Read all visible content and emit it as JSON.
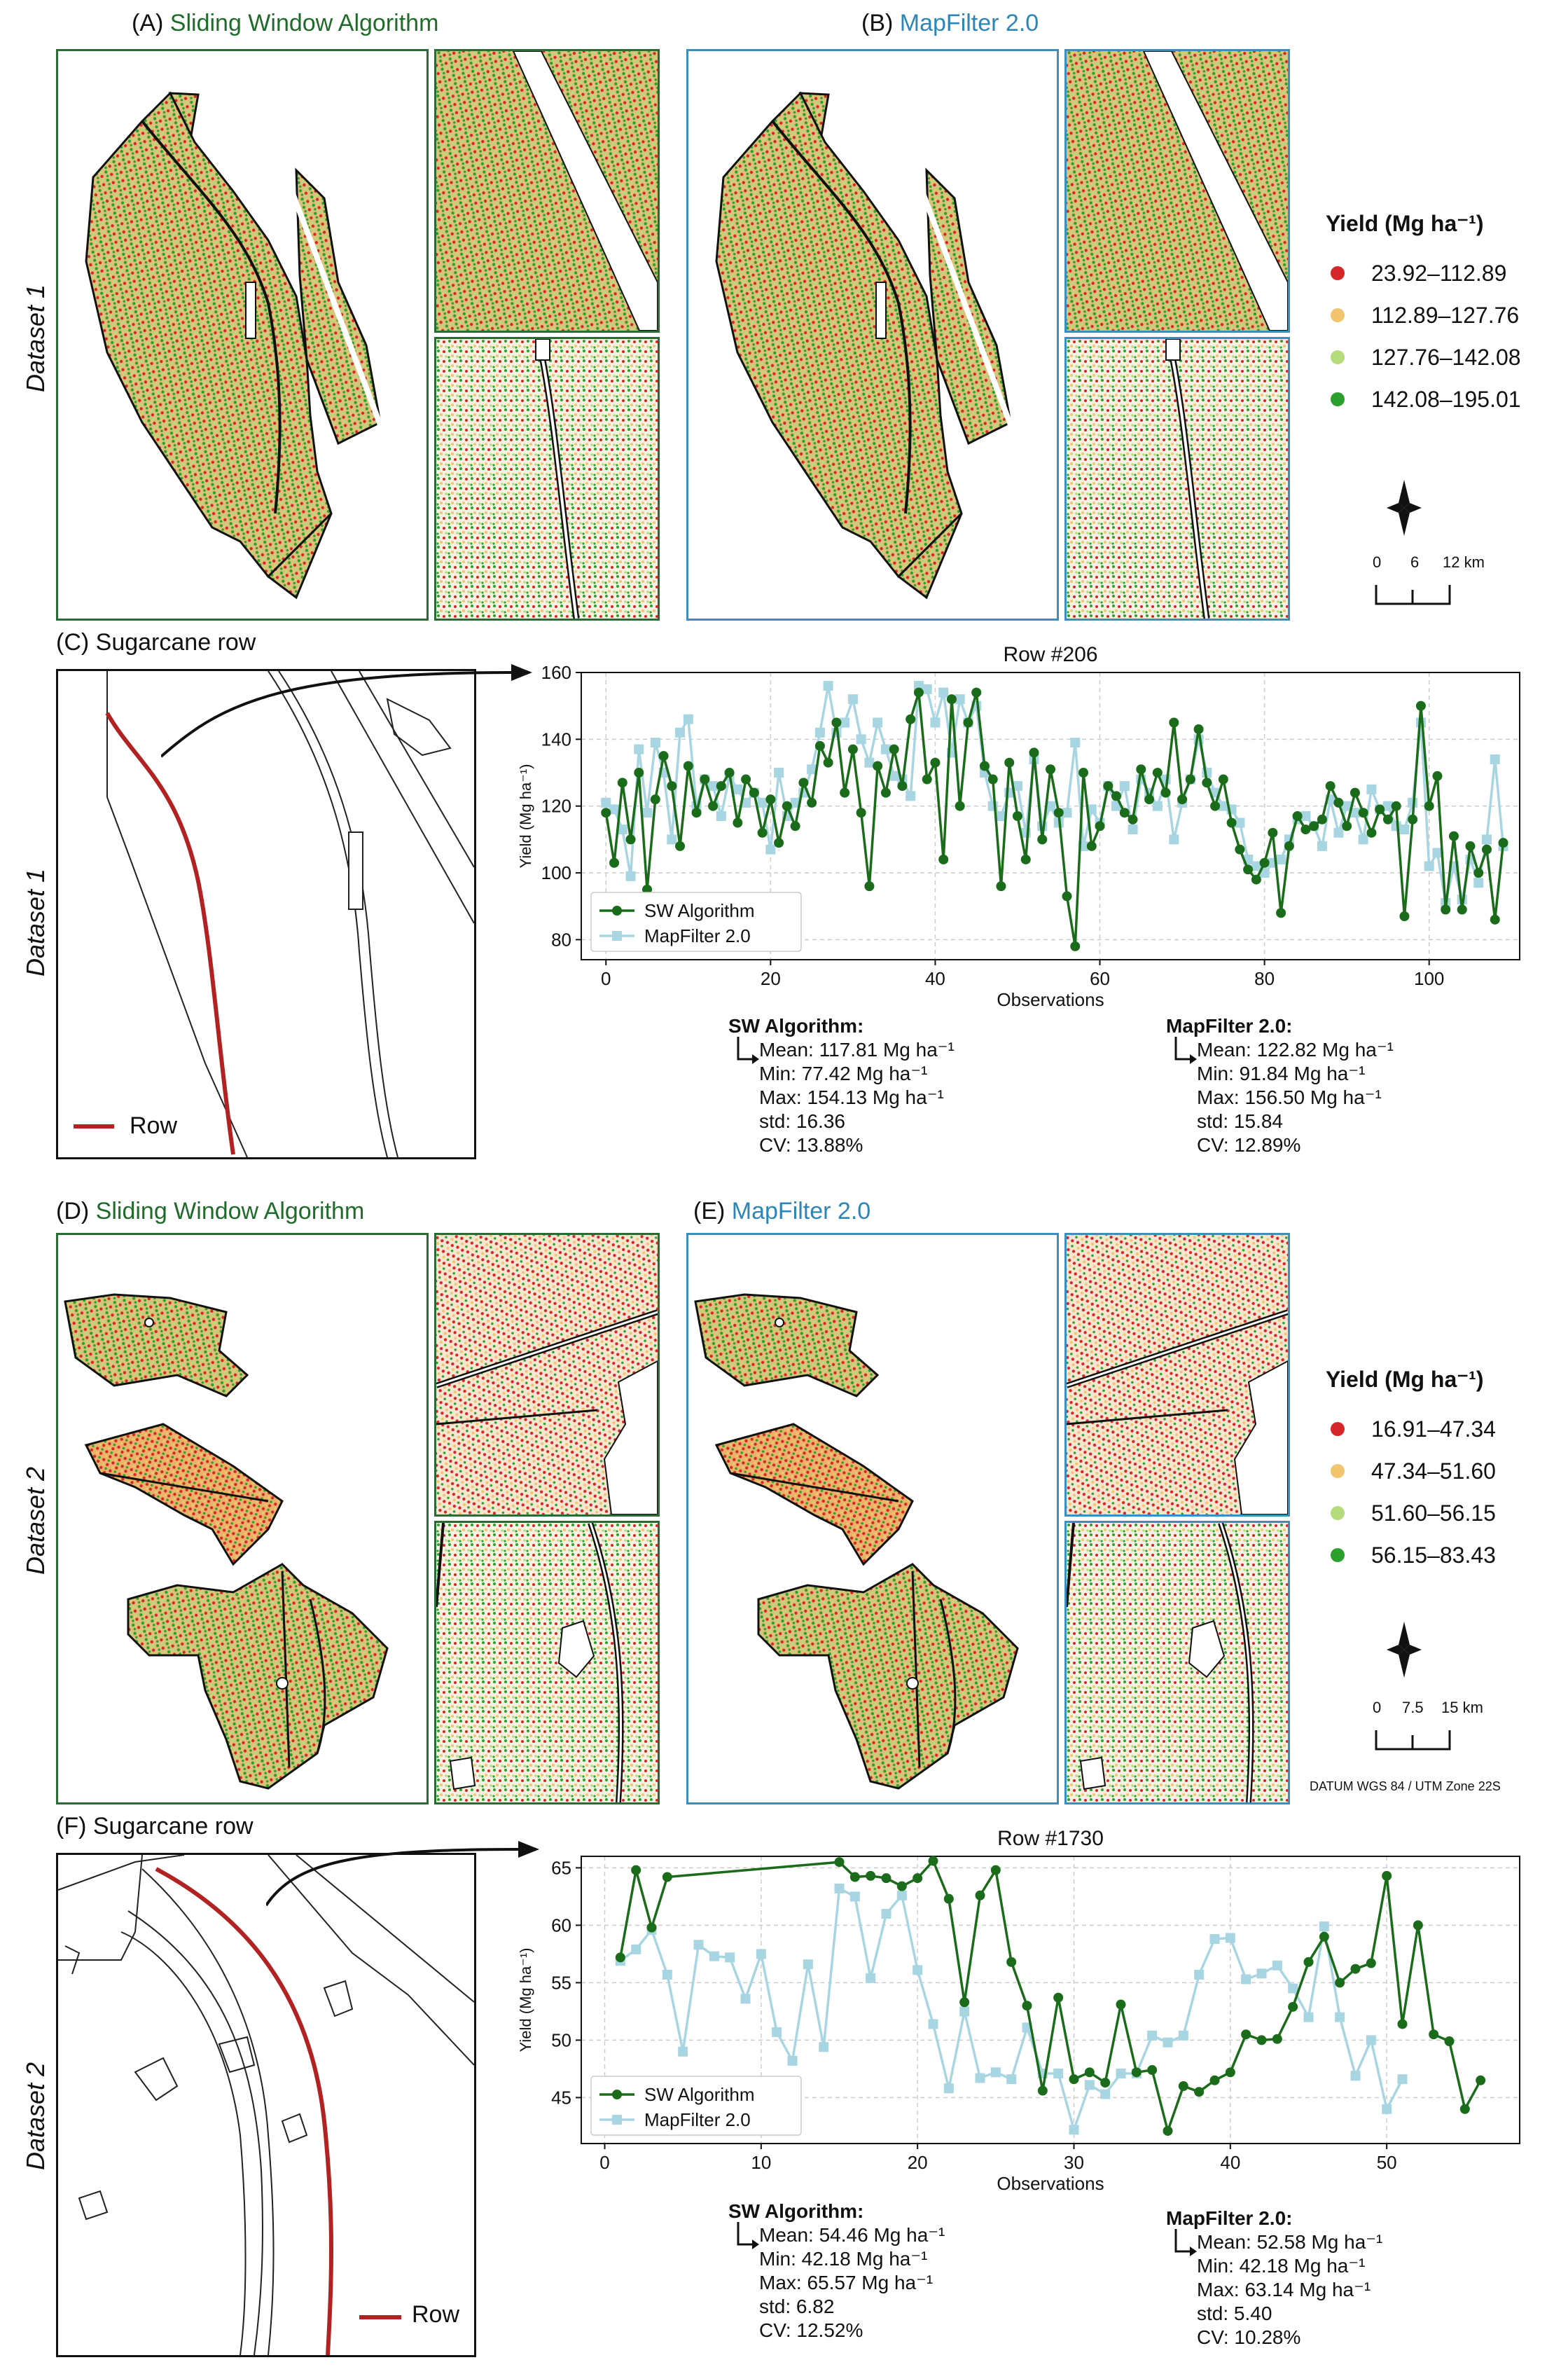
{
  "panels": {
    "A": {
      "title": "(A) Sliding Window Algorithm",
      "prefix": "(A) ",
      "name": "Sliding Window Algorithm",
      "color": "#1f6b2a"
    },
    "B": {
      "title": "(B) MapFilter 2.0",
      "prefix": "(B) ",
      "name": "MapFilter 2.0",
      "color": "#2e86b5"
    },
    "C": {
      "title": "(C) Sugarcane row"
    },
    "D": {
      "prefix": "(D) ",
      "name": "Sliding Window Algorithm",
      "color": "#1f6b2a"
    },
    "E": {
      "prefix": "(E) ",
      "name": "MapFilter 2.0",
      "color": "#2e86b5"
    },
    "F": {
      "title": "(F) Sugarcane row"
    }
  },
  "side_labels": {
    "dataset1": "Dataset 1",
    "dataset2": "Dataset 2"
  },
  "row_legend_label": "Row",
  "legend1": {
    "title": "Yield (Mg ha⁻¹)",
    "items": [
      "23.92–112.89",
      "112.89–127.76",
      "127.76–142.08",
      "142.08–195.01"
    ],
    "colors": [
      "#d62728",
      "#f2c46d",
      "#b5dc7a",
      "#2ca02c"
    ],
    "scale": [
      "0",
      "6",
      "12 km"
    ]
  },
  "legend2": {
    "title": "Yield (Mg ha⁻¹)",
    "items": [
      "16.91–47.34",
      "47.34–51.60",
      "51.60–56.15",
      "56.15–83.43"
    ],
    "colors": [
      "#d62728",
      "#f2c46d",
      "#b5dc7a",
      "#2ca02c"
    ],
    "scale": [
      "0",
      "7.5",
      "15 km"
    ],
    "datum": "DATUM WGS 84 / UTM Zone 22S"
  },
  "stats1": {
    "sw": {
      "title": "SW Algorithm:",
      "mean": "Mean: 117.81 Mg ha⁻¹",
      "min": "Min: 77.42 Mg ha⁻¹",
      "max": "Max: 154.13 Mg ha⁻¹",
      "std": "std: 16.36",
      "cv": "CV: 13.88%"
    },
    "mf": {
      "title": "MapFilter 2.0:",
      "mean": "Mean: 122.82 Mg ha⁻¹",
      "min": "Min: 91.84 Mg ha⁻¹",
      "max": "Max: 156.50 Mg ha⁻¹",
      "std": "std: 15.84",
      "cv": "CV: 12.89%"
    }
  },
  "stats2": {
    "sw": {
      "title": "SW Algorithm:",
      "mean": "Mean: 54.46 Mg ha⁻¹",
      "min": "Min: 42.18 Mg ha⁻¹",
      "max": "Max: 65.57 Mg ha⁻¹",
      "std": "std: 6.82",
      "cv": "CV: 12.52%"
    },
    "mf": {
      "title": "MapFilter 2.0:",
      "mean": "Mean: 52.58 Mg ha⁻¹",
      "min": "Min: 42.18 Mg ha⁻¹",
      "max": "Max: 63.14 Mg ha⁻¹",
      "std": "std: 5.40",
      "cv": "CV: 10.28%"
    }
  },
  "chart_data": [
    {
      "type": "line",
      "title": "Row #206",
      "xlabel": "Observations",
      "ylabel": "Yield (Mg ha⁻¹)",
      "xlim": [
        -3,
        111
      ],
      "ylim": [
        74,
        160
      ],
      "xticks": [
        0,
        20,
        40,
        60,
        80,
        100
      ],
      "yticks": [
        80,
        100,
        120,
        140,
        160
      ],
      "grid": true,
      "legend_position": "lower-left",
      "series": [
        {
          "name": "SW Algorithm",
          "color": "#1a6b1a",
          "marker": "circle",
          "x": [
            0,
            1,
            2,
            3,
            4,
            5,
            6,
            7,
            8,
            9,
            10,
            11,
            12,
            13,
            14,
            15,
            16,
            17,
            18,
            19,
            20,
            21,
            22,
            23,
            24,
            25,
            26,
            27,
            28,
            29,
            30,
            31,
            32,
            33,
            34,
            35,
            36,
            37,
            38,
            39,
            40,
            41,
            42,
            43,
            44,
            45,
            46,
            47,
            48,
            49,
            50,
            51,
            52,
            53,
            54,
            55,
            56,
            57,
            58,
            59,
            60,
            61,
            62,
            63,
            64,
            65,
            66,
            67,
            68,
            69,
            70,
            71,
            72,
            73,
            74,
            75,
            76,
            77,
            78,
            79,
            80,
            81,
            82,
            83,
            84,
            85,
            86,
            87,
            88,
            89,
            90,
            91,
            92,
            93,
            94,
            95,
            96,
            97,
            98,
            99,
            100,
            101,
            102,
            103,
            104,
            105,
            106,
            107,
            108,
            109
          ],
          "values": [
            118,
            103,
            127,
            110,
            130,
            95,
            122,
            135,
            126,
            108,
            132,
            118,
            128,
            120,
            126,
            130,
            115,
            128,
            124,
            112,
            122,
            109,
            120,
            114,
            127,
            121,
            138,
            133,
            145,
            124,
            137,
            118,
            96,
            132,
            124,
            137,
            126,
            146,
            154,
            128,
            133,
            104,
            152,
            120,
            145,
            154,
            132,
            128,
            96,
            133,
            117,
            104,
            136,
            110,
            131,
            118,
            93,
            78,
            130,
            108,
            114,
            126,
            123,
            118,
            116,
            131,
            122,
            130,
            124,
            145,
            122,
            128,
            143,
            127,
            120,
            128,
            115,
            107,
            101,
            98,
            103,
            112,
            88,
            108,
            117,
            113,
            114,
            116,
            126,
            121,
            114,
            124,
            118,
            112,
            119,
            116,
            120,
            87,
            116,
            150,
            120,
            129,
            89,
            111,
            89,
            108,
            100,
            107,
            86,
            109
          ]
        },
        {
          "name": "MapFilter 2.0",
          "color": "#a8d5e2",
          "marker": "square",
          "x": [
            0,
            1,
            2,
            3,
            4,
            5,
            6,
            7,
            8,
            9,
            10,
            11,
            12,
            13,
            14,
            15,
            16,
            17,
            18,
            19,
            20,
            21,
            22,
            23,
            24,
            25,
            26,
            27,
            28,
            29,
            30,
            31,
            32,
            33,
            34,
            35,
            36,
            37,
            38,
            39,
            40,
            41,
            42,
            43,
            44,
            45,
            46,
            47,
            48,
            49,
            50,
            51,
            52,
            53,
            54,
            55,
            56,
            57,
            58,
            59,
            60,
            61,
            62,
            63,
            64,
            65,
            66,
            67,
            68,
            69,
            70,
            71,
            72,
            73,
            74,
            75,
            76,
            77,
            78,
            79,
            80,
            81,
            82,
            83,
            84,
            85,
            86,
            87,
            88,
            89,
            90,
            91,
            92,
            93,
            94,
            95,
            96,
            97,
            98,
            99,
            100,
            101,
            102,
            103,
            104,
            105,
            106,
            107,
            108,
            109
          ],
          "values": [
            121,
            119,
            113,
            99,
            137,
            118,
            139,
            130,
            110,
            142,
            146,
            120,
            128,
            126,
            117,
            129,
            125,
            121,
            124,
            121,
            107,
            130,
            117,
            121,
            124,
            131,
            142,
            156,
            142,
            145,
            152,
            140,
            133,
            145,
            137,
            129,
            128,
            123,
            156,
            155,
            145,
            154,
            136,
            152,
            145,
            150,
            130,
            120,
            117,
            124,
            126,
            112,
            134,
            114,
            120,
            115,
            118,
            139,
            108,
            119,
            115,
            126,
            120,
            126,
            113,
            128,
            124,
            120,
            128,
            110,
            121,
            128,
            140,
            130,
            124,
            120,
            119,
            115,
            104,
            102,
            100,
            103,
            104,
            110,
            116,
            117,
            114,
            108,
            122,
            112,
            120,
            118,
            110,
            125,
            119,
            120,
            114,
            113,
            121,
            145,
            102,
            106,
            91,
            102,
            92,
            104,
            97,
            110,
            134,
            108
          ]
        }
      ]
    },
    {
      "type": "line",
      "title": "Row #1730",
      "xlabel": "Observations",
      "ylabel": "Yield (Mg ha⁻¹)",
      "xlim": [
        -1.5,
        58.5
      ],
      "ylim": [
        41,
        66
      ],
      "xticks": [
        0,
        10,
        20,
        30,
        40,
        50
      ],
      "yticks": [
        45,
        50,
        55,
        60,
        65
      ],
      "grid": true,
      "legend_position": "lower-left",
      "series": [
        {
          "name": "SW Algorithm",
          "color": "#1a6b1a",
          "marker": "circle",
          "x": [
            1,
            2,
            3,
            4,
            15,
            16,
            17,
            18,
            19,
            20,
            21,
            22,
            23,
            24,
            25,
            26,
            27,
            28,
            29,
            30,
            31,
            32,
            33,
            34,
            35,
            36,
            37,
            38,
            39,
            40,
            41,
            42,
            43,
            44,
            45,
            46,
            47,
            48,
            49,
            50,
            51,
            52,
            53,
            54,
            55,
            56
          ],
          "values": [
            57.2,
            64.8,
            59.8,
            64.2,
            65.5,
            64.2,
            64.3,
            64.1,
            63.4,
            64.1,
            65.6,
            62.3,
            53.3,
            62.6,
            64.8,
            56.8,
            53.0,
            45.6,
            53.7,
            46.6,
            47.2,
            46.3,
            53.1,
            47.2,
            47.4,
            42.1,
            46.0,
            45.5,
            46.5,
            47.2,
            50.5,
            50.0,
            50.1,
            52.9,
            56.8,
            59.0,
            55.0,
            56.2,
            56.7,
            64.3,
            51.4,
            60.0,
            50.5,
            49.9,
            44.0,
            46.5
          ]
        },
        {
          "name": "MapFilter 2.0",
          "color": "#a8d5e2",
          "marker": "square",
          "x": [
            1,
            2,
            3,
            4,
            5,
            6,
            7,
            8,
            9,
            10,
            11,
            12,
            13,
            14,
            15,
            16,
            17,
            18,
            19,
            20,
            21,
            22,
            23,
            24,
            25,
            26,
            27,
            28,
            29,
            30,
            31,
            32,
            33,
            34,
            35,
            36,
            37,
            38,
            39,
            40,
            41,
            42,
            43,
            44,
            45,
            46,
            47,
            48,
            49,
            50,
            51
          ],
          "values": [
            56.9,
            57.9,
            59.6,
            55.7,
            49.0,
            58.3,
            57.3,
            57.2,
            53.6,
            57.5,
            50.7,
            48.2,
            56.6,
            49.4,
            63.2,
            62.5,
            55.4,
            61.0,
            62.6,
            56.1,
            51.4,
            45.8,
            52.5,
            46.7,
            47.2,
            46.6,
            51.1,
            47.1,
            47.1,
            42.2,
            46.1,
            45.3,
            47.1,
            47.1,
            50.4,
            49.8,
            50.4,
            55.7,
            58.8,
            58.9,
            55.3,
            55.8,
            56.5,
            54.5,
            52.0,
            59.9,
            52.0,
            46.9,
            50.0,
            44.0,
            46.6
          ]
        }
      ]
    }
  ]
}
